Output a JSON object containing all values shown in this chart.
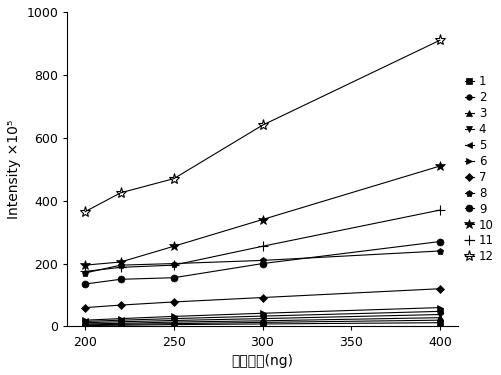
{
  "x": [
    200,
    220,
    250,
    300,
    400
  ],
  "series": [
    {
      "label": "1",
      "marker": "s",
      "mstyle": "filled",
      "values": [
        3,
        4,
        6,
        8,
        12
      ]
    },
    {
      "label": "2",
      "marker": "o",
      "mstyle": "filled",
      "values": [
        5,
        7,
        9,
        13,
        20
      ]
    },
    {
      "label": "3",
      "marker": "^",
      "mstyle": "filled",
      "values": [
        8,
        10,
        14,
        18,
        28
      ]
    },
    {
      "label": "4",
      "marker": "v",
      "mstyle": "filled",
      "values": [
        12,
        15,
        19,
        25,
        38
      ]
    },
    {
      "label": "5",
      "marker": "<",
      "mstyle": "filled",
      "values": [
        16,
        20,
        25,
        33,
        48
      ]
    },
    {
      "label": "6",
      "marker": ">",
      "mstyle": "filled",
      "values": [
        20,
        25,
        32,
        42,
        60
      ]
    },
    {
      "label": "7",
      "marker": "D",
      "mstyle": "filled",
      "values": [
        60,
        68,
        78,
        92,
        120
      ]
    },
    {
      "label": "8",
      "marker": "p",
      "mstyle": "filled",
      "values": [
        170,
        195,
        200,
        210,
        240
      ]
    },
    {
      "label": "9",
      "marker": "o",
      "mstyle": "filled",
      "values": [
        135,
        150,
        155,
        200,
        270
      ]
    },
    {
      "label": "10",
      "marker": "*",
      "mstyle": "filled",
      "values": [
        195,
        205,
        255,
        340,
        510
      ]
    },
    {
      "label": "11",
      "marker": "+",
      "mstyle": "open",
      "values": [
        175,
        188,
        195,
        255,
        370
      ]
    },
    {
      "label": "12",
      "marker": "*",
      "mstyle": "open",
      "values": [
        365,
        425,
        470,
        640,
        910
      ]
    }
  ],
  "xlabel": "二糖质量(ng)",
  "ylabel": "Intensity ×10⁵",
  "xlim": [
    190,
    410
  ],
  "ylim": [
    0,
    1000
  ],
  "xticks": [
    200,
    250,
    300,
    350,
    400
  ],
  "yticks": [
    0,
    200,
    400,
    600,
    800,
    1000
  ],
  "figsize": [
    5.02,
    3.75
  ],
  "dpi": 100
}
